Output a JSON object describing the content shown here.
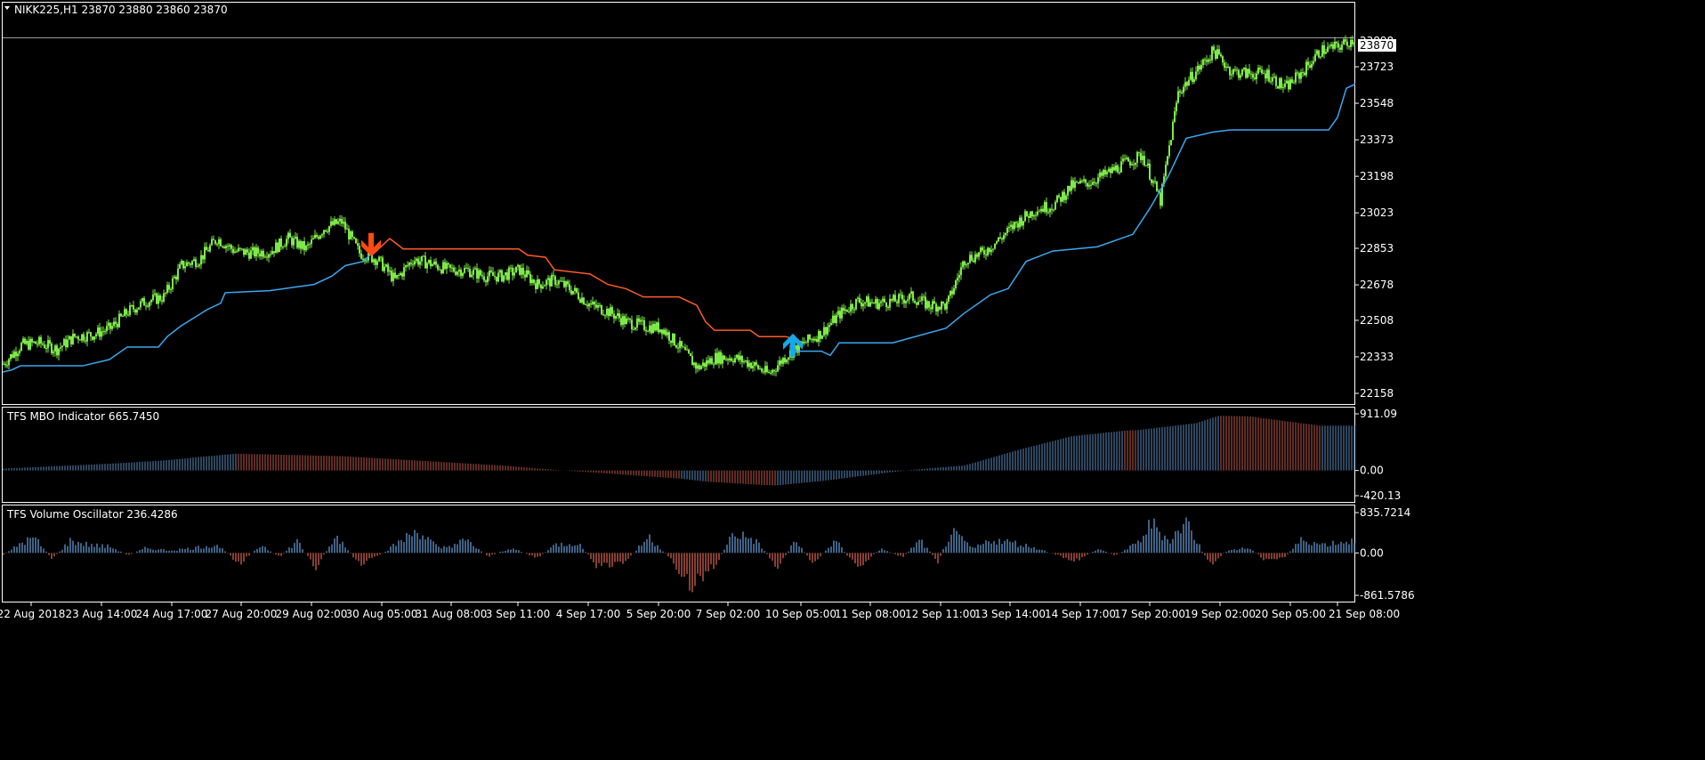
{
  "chart_data": [
    {
      "type": "line",
      "title": "NIKK225,H1  23870 23880 23860 23870",
      "symbol": "NIKK225,H1",
      "ohlc": {
        "open": 23870,
        "high": 23880,
        "low": 23860,
        "close": 23870
      },
      "current_price": "23870",
      "current_price_top_label": "23898",
      "yticks": [
        "23723",
        "23548",
        "23373",
        "23198",
        "23023",
        "22853",
        "22678",
        "22508",
        "22333",
        "22158"
      ],
      "ylim": [
        22100,
        23920
      ],
      "colors": {
        "candles": "#7ee84a",
        "trend_up": "#3aa8f0",
        "trend_down": "#ff5a2a",
        "arrow_down": "#ff4a10",
        "arrow_up": "#16a8e8"
      },
      "series": [
        {
          "name": "",
          "x": [
            0,
            20,
            40,
            60,
            80,
            100,
            120,
            140,
            160,
            180,
            200,
            220,
            240,
            260,
            280,
            300,
            320,
            340,
            360,
            380,
            400,
            420,
            440,
            460,
            480,
            500,
            520,
            540,
            560,
            580,
            600,
            620,
            640,
            660,
            680,
            700,
            720,
            740,
            760,
            780,
            800,
            820,
            840,
            860,
            880,
            900,
            920,
            940,
            960,
            980,
            1000,
            1020,
            1040,
            1060,
            1080,
            1100,
            1120,
            1140,
            1160,
            1180,
            1200,
            1220,
            1240,
            1260,
            1280,
            1300,
            1320,
            1340,
            1360,
            1380,
            1400,
            1420,
            1440,
            1460,
            1480,
            1500,
            1520
          ],
          "values": [
            22300,
            22390,
            22400,
            22370,
            22430,
            22440,
            22470,
            22550,
            22600,
            22620,
            22770,
            22800,
            22900,
            22840,
            22830,
            22840,
            22900,
            22850,
            22950,
            22980,
            22830,
            22800,
            22700,
            22800,
            22780,
            22750,
            22750,
            22720,
            22720,
            22750,
            22680,
            22700,
            22650,
            22580,
            22550,
            22500,
            22480,
            22470,
            22380,
            22280,
            22330,
            22330,
            22300,
            22250,
            22340,
            22400,
            22450,
            22540,
            22600,
            22590,
            22600,
            22620,
            22580,
            22580,
            22800,
            22830,
            22900,
            22980,
            23040,
            23060,
            23150,
            23170,
            23210,
            23260,
            23300,
            23080,
            23600,
            23700,
            23800,
            23700,
            23690,
            23690,
            23620,
            23700,
            23800,
            23820,
            23860
          ]
        },
        {
          "name": "",
          "x": [
            0,
            10,
            20,
            90,
            120,
            140,
            175,
            185,
            200,
            215,
            230,
            245,
            250,
            300,
            350,
            370,
            385,
            405,
            410,
            415
          ],
          "values": [
            22260,
            22270,
            22290,
            22290,
            22320,
            22380,
            22380,
            22430,
            22480,
            22520,
            22560,
            22590,
            22640,
            22650,
            22680,
            22720,
            22770,
            22790,
            22810,
            22830
          ]
        },
        {
          "name": "",
          "x": [
            415,
            425,
            435,
            450,
            580,
            590,
            610,
            620,
            660,
            680,
            700,
            720,
            760,
            780,
            790,
            800,
            840,
            850,
            880,
            888
          ],
          "values": [
            22820,
            22860,
            22900,
            22850,
            22850,
            22820,
            22810,
            22750,
            22730,
            22680,
            22660,
            22620,
            22620,
            22580,
            22500,
            22460,
            22460,
            22430,
            22430,
            22420
          ]
        },
        {
          "name": "",
          "x": [
            888,
            920,
            930,
            940,
            1000,
            1060,
            1080,
            1110,
            1130,
            1150,
            1180,
            1230,
            1270,
            1290,
            1310,
            1330,
            1360,
            1380,
            1490,
            1500,
            1510,
            1520
          ],
          "values": [
            22360,
            22360,
            22340,
            22400,
            22400,
            22470,
            22540,
            22630,
            22660,
            22790,
            22840,
            22860,
            22920,
            23050,
            23200,
            23380,
            23410,
            23420,
            23420,
            23480,
            23620,
            23640
          ]
        }
      ],
      "arrows": [
        {
          "direction": "down",
          "x": 414,
          "y": 22850
        },
        {
          "direction": "up",
          "x": 888,
          "y": 22410
        }
      ]
    },
    {
      "type": "bar",
      "title": "TFS MBO Indicator 665.7450",
      "yticks": [
        "911.09",
        "0.00",
        "-420.13"
      ],
      "ylim": [
        -420.13,
        911.09
      ],
      "colors": {
        "up": "#5b8cbf",
        "down": "#c05a4a"
      },
      "profile": [
        {
          "x": 0,
          "value": 30,
          "color": "up"
        },
        {
          "x": 60,
          "value": 70,
          "color": "up"
        },
        {
          "x": 120,
          "value": 110,
          "color": "up"
        },
        {
          "x": 180,
          "value": 160,
          "color": "up"
        },
        {
          "x": 230,
          "value": 230,
          "color": "up"
        },
        {
          "x": 262,
          "value": 270,
          "color": "down"
        },
        {
          "x": 320,
          "value": 250,
          "color": "down"
        },
        {
          "x": 380,
          "value": 230,
          "color": "down"
        },
        {
          "x": 440,
          "value": 180,
          "color": "down"
        },
        {
          "x": 500,
          "value": 130,
          "color": "down"
        },
        {
          "x": 560,
          "value": 80,
          "color": "down"
        },
        {
          "x": 620,
          "value": 10,
          "color": "down"
        },
        {
          "x": 680,
          "value": -50,
          "color": "down"
        },
        {
          "x": 740,
          "value": -110,
          "color": "down"
        },
        {
          "x": 760,
          "value": -130,
          "color": "up"
        },
        {
          "x": 790,
          "value": -180,
          "color": "down"
        },
        {
          "x": 850,
          "value": -230,
          "color": "down"
        },
        {
          "x": 868,
          "value": -240,
          "color": "up"
        },
        {
          "x": 920,
          "value": -170,
          "color": "up"
        },
        {
          "x": 980,
          "value": -60,
          "color": "up"
        },
        {
          "x": 1020,
          "value": 10,
          "color": "up"
        },
        {
          "x": 1080,
          "value": 80,
          "color": "up"
        },
        {
          "x": 1140,
          "value": 330,
          "color": "up"
        },
        {
          "x": 1200,
          "value": 550,
          "color": "up"
        },
        {
          "x": 1260,
          "value": 640,
          "color": "down"
        },
        {
          "x": 1275,
          "value": 650,
          "color": "up"
        },
        {
          "x": 1340,
          "value": 760,
          "color": "up"
        },
        {
          "x": 1366,
          "value": 880,
          "color": "down"
        },
        {
          "x": 1400,
          "value": 870,
          "color": "down"
        },
        {
          "x": 1480,
          "value": 720,
          "color": "up"
        },
        {
          "x": 1520,
          "value": 720,
          "color": "up"
        }
      ]
    },
    {
      "type": "bar",
      "title": "TFS Volume Oscillator 236.4286",
      "yticks": [
        "835.7214",
        "0.00",
        "-861.5786"
      ],
      "ylim": [
        -861.5786,
        835.7214
      ],
      "colors": {
        "up": "#5b8cbf",
        "down": "#c05a4a"
      },
      "profile": [
        {
          "x": 0,
          "value": -60
        },
        {
          "x": 20,
          "value": 250
        },
        {
          "x": 35,
          "value": 360
        },
        {
          "x": 55,
          "value": -150
        },
        {
          "x": 75,
          "value": 300
        },
        {
          "x": 95,
          "value": 200
        },
        {
          "x": 120,
          "value": 150
        },
        {
          "x": 140,
          "value": -60
        },
        {
          "x": 160,
          "value": 120
        },
        {
          "x": 185,
          "value": 60
        },
        {
          "x": 210,
          "value": 110
        },
        {
          "x": 240,
          "value": 200
        },
        {
          "x": 265,
          "value": -250
        },
        {
          "x": 290,
          "value": 200
        },
        {
          "x": 310,
          "value": -120
        },
        {
          "x": 330,
          "value": 300
        },
        {
          "x": 350,
          "value": -350
        },
        {
          "x": 375,
          "value": 400
        },
        {
          "x": 400,
          "value": -300
        },
        {
          "x": 420,
          "value": -100
        },
        {
          "x": 440,
          "value": 200
        },
        {
          "x": 465,
          "value": 550
        },
        {
          "x": 490,
          "value": 100
        },
        {
          "x": 520,
          "value": 300
        },
        {
          "x": 545,
          "value": -80
        },
        {
          "x": 570,
          "value": 120
        },
        {
          "x": 600,
          "value": -120
        },
        {
          "x": 620,
          "value": 200
        },
        {
          "x": 645,
          "value": 250
        },
        {
          "x": 670,
          "value": -380
        },
        {
          "x": 700,
          "value": -200
        },
        {
          "x": 725,
          "value": 400
        },
        {
          "x": 750,
          "value": -150
        },
        {
          "x": 772,
          "value": -800
        },
        {
          "x": 800,
          "value": -300
        },
        {
          "x": 820,
          "value": 500
        },
        {
          "x": 845,
          "value": 300
        },
        {
          "x": 870,
          "value": -350
        },
        {
          "x": 890,
          "value": 300
        },
        {
          "x": 910,
          "value": -250
        },
        {
          "x": 935,
          "value": 300
        },
        {
          "x": 960,
          "value": -380
        },
        {
          "x": 985,
          "value": 100
        },
        {
          "x": 1010,
          "value": -100
        },
        {
          "x": 1030,
          "value": 300
        },
        {
          "x": 1050,
          "value": -200
        },
        {
          "x": 1065,
          "value": 500
        },
        {
          "x": 1090,
          "value": 100
        },
        {
          "x": 1110,
          "value": 320
        },
        {
          "x": 1135,
          "value": 250
        },
        {
          "x": 1160,
          "value": 120
        },
        {
          "x": 1185,
          "value": -60
        },
        {
          "x": 1205,
          "value": -200
        },
        {
          "x": 1230,
          "value": 100
        },
        {
          "x": 1250,
          "value": -60
        },
        {
          "x": 1275,
          "value": 250
        },
        {
          "x": 1290,
          "value": 720
        },
        {
          "x": 1310,
          "value": 300
        },
        {
          "x": 1330,
          "value": 760
        },
        {
          "x": 1355,
          "value": -300
        },
        {
          "x": 1375,
          "value": 60
        },
        {
          "x": 1400,
          "value": 120
        },
        {
          "x": 1420,
          "value": -200
        },
        {
          "x": 1440,
          "value": -100
        },
        {
          "x": 1460,
          "value": 350
        },
        {
          "x": 1480,
          "value": 200
        },
        {
          "x": 1500,
          "value": 260
        },
        {
          "x": 1520,
          "value": 300
        }
      ]
    }
  ],
  "xaxis_labels": [
    {
      "x": 32,
      "label": "22 Aug 2018"
    },
    {
      "x": 111,
      "label": "23 Aug 14:00"
    },
    {
      "x": 190,
      "label": "24 Aug 17:00"
    },
    {
      "x": 268,
      "label": "27 Aug 20:00"
    },
    {
      "x": 347,
      "label": "29 Aug 02:00"
    },
    {
      "x": 426,
      "label": "30 Aug 05:00"
    },
    {
      "x": 504,
      "label": "31 Aug 08:00"
    },
    {
      "x": 579,
      "label": "3 Sep 11:00"
    },
    {
      "x": 658,
      "label": "4 Sep 17:00"
    },
    {
      "x": 737,
      "label": "5 Sep 20:00"
    },
    {
      "x": 815,
      "label": "7 Sep 02:00"
    },
    {
      "x": 897,
      "label": "10 Sep 05:00"
    },
    {
      "x": 975,
      "label": "11 Sep 08:00"
    },
    {
      "x": 1054,
      "label": "12 Sep 11:00"
    },
    {
      "x": 1132,
      "label": "13 Sep 14:00"
    },
    {
      "x": 1211,
      "label": "14 Sep 17:00"
    },
    {
      "x": 1289,
      "label": "17 Sep 20:00"
    },
    {
      "x": 1368,
      "label": "19 Sep 02:00"
    },
    {
      "x": 1447,
      "label": "20 Sep 05:00"
    },
    {
      "x": 1500,
      "label": "21 Sep 08:00"
    }
  ]
}
